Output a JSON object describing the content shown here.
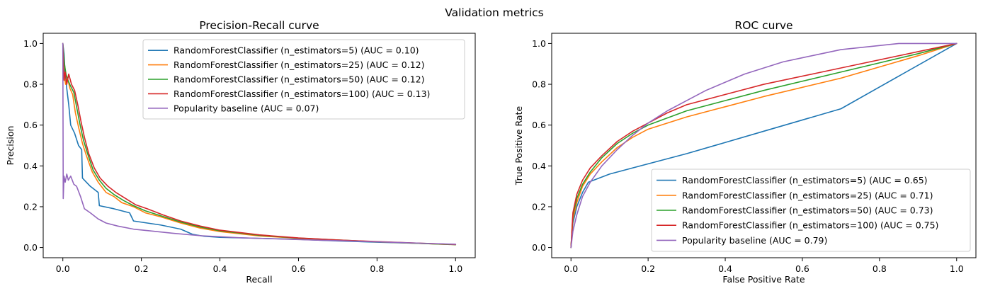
{
  "figure": {
    "suptitle": "Validation metrics"
  },
  "chart_data": [
    {
      "type": "line",
      "title": "Precision-Recall curve",
      "xlabel": "Recall",
      "ylabel": "Precision",
      "xlim": [
        -0.05,
        1.05
      ],
      "ylim": [
        -0.05,
        1.05
      ],
      "xticks": [
        0.0,
        0.2,
        0.4,
        0.6,
        0.8,
        1.0
      ],
      "yticks": [
        0.0,
        0.2,
        0.4,
        0.6,
        0.8,
        1.0
      ],
      "grid": false,
      "legend_position": "upper-right",
      "series": [
        {
          "name": "RandomForestClassifier (n_estimators=5) (AUC = 0.10)",
          "color": "#1f77b4",
          "points": [
            [
              0,
              1.0
            ],
            [
              0.003,
              0.95
            ],
            [
              0.006,
              0.85
            ],
            [
              0.01,
              0.78
            ],
            [
              0.015,
              0.7
            ],
            [
              0.02,
              0.6
            ],
            [
              0.03,
              0.56
            ],
            [
              0.04,
              0.5
            ],
            [
              0.048,
              0.48
            ],
            [
              0.05,
              0.34
            ],
            [
              0.07,
              0.3
            ],
            [
              0.09,
              0.27
            ],
            [
              0.093,
              0.205
            ],
            [
              0.13,
              0.19
            ],
            [
              0.17,
              0.17
            ],
            [
              0.18,
              0.13
            ],
            [
              0.25,
              0.11
            ],
            [
              0.3,
              0.09
            ],
            [
              0.33,
              0.065
            ],
            [
              0.36,
              0.055
            ],
            [
              0.4,
              0.05
            ],
            [
              0.5,
              0.045
            ],
            [
              0.6,
              0.04
            ],
            [
              0.7,
              0.032
            ],
            [
              0.8,
              0.026
            ],
            [
              0.9,
              0.021
            ],
            [
              1.0,
              0.015
            ]
          ]
        },
        {
          "name": "RandomForestClassifier (n_estimators=25) (AUC = 0.12)",
          "color": "#ff7f0e",
          "points": [
            [
              0,
              1.0
            ],
            [
              0.003,
              0.85
            ],
            [
              0.007,
              0.8
            ],
            [
              0.012,
              0.83
            ],
            [
              0.018,
              0.78
            ],
            [
              0.025,
              0.75
            ],
            [
              0.032,
              0.66
            ],
            [
              0.04,
              0.59
            ],
            [
              0.05,
              0.51
            ],
            [
              0.06,
              0.45
            ],
            [
              0.075,
              0.37
            ],
            [
              0.09,
              0.32
            ],
            [
              0.11,
              0.27
            ],
            [
              0.13,
              0.25
            ],
            [
              0.15,
              0.22
            ],
            [
              0.18,
              0.2
            ],
            [
              0.21,
              0.17
            ],
            [
              0.25,
              0.15
            ],
            [
              0.3,
              0.12
            ],
            [
              0.35,
              0.095
            ],
            [
              0.4,
              0.078
            ],
            [
              0.5,
              0.057
            ],
            [
              0.6,
              0.045
            ],
            [
              0.7,
              0.036
            ],
            [
              0.8,
              0.028
            ],
            [
              0.9,
              0.021
            ],
            [
              1.0,
              0.014
            ]
          ]
        },
        {
          "name": "RandomForestClassifier (n_estimators=50) (AUC = 0.12)",
          "color": "#2ca02c",
          "points": [
            [
              0,
              1.0
            ],
            [
              0.004,
              0.9
            ],
            [
              0.008,
              0.85
            ],
            [
              0.013,
              0.82
            ],
            [
              0.02,
              0.79
            ],
            [
              0.028,
              0.76
            ],
            [
              0.035,
              0.69
            ],
            [
              0.043,
              0.61
            ],
            [
              0.052,
              0.53
            ],
            [
              0.063,
              0.46
            ],
            [
              0.077,
              0.38
            ],
            [
              0.093,
              0.33
            ],
            [
              0.11,
              0.29
            ],
            [
              0.13,
              0.26
            ],
            [
              0.155,
              0.23
            ],
            [
              0.18,
              0.205
            ],
            [
              0.21,
              0.18
            ],
            [
              0.25,
              0.155
            ],
            [
              0.3,
              0.125
            ],
            [
              0.35,
              0.1
            ],
            [
              0.4,
              0.082
            ],
            [
              0.5,
              0.06
            ],
            [
              0.6,
              0.046
            ],
            [
              0.7,
              0.037
            ],
            [
              0.8,
              0.028
            ],
            [
              0.9,
              0.021
            ],
            [
              1.0,
              0.014
            ]
          ]
        },
        {
          "name": "RandomForestClassifier (n_estimators=100) (AUC = 0.13)",
          "color": "#d62728",
          "points": [
            [
              0,
              1.0
            ],
            [
              0.003,
              0.82
            ],
            [
              0.006,
              0.86
            ],
            [
              0.01,
              0.8
            ],
            [
              0.015,
              0.85
            ],
            [
              0.022,
              0.8
            ],
            [
              0.03,
              0.77
            ],
            [
              0.038,
              0.7
            ],
            [
              0.046,
              0.62
            ],
            [
              0.055,
              0.54
            ],
            [
              0.066,
              0.46
            ],
            [
              0.08,
              0.39
            ],
            [
              0.095,
              0.34
            ],
            [
              0.115,
              0.3
            ],
            [
              0.135,
              0.27
            ],
            [
              0.16,
              0.24
            ],
            [
              0.185,
              0.21
            ],
            [
              0.215,
              0.19
            ],
            [
              0.255,
              0.16
            ],
            [
              0.3,
              0.13
            ],
            [
              0.35,
              0.105
            ],
            [
              0.4,
              0.085
            ],
            [
              0.5,
              0.062
            ],
            [
              0.6,
              0.047
            ],
            [
              0.7,
              0.037
            ],
            [
              0.8,
              0.029
            ],
            [
              0.9,
              0.022
            ],
            [
              1.0,
              0.015
            ]
          ]
        },
        {
          "name": "Popularity baseline (AUC = 0.07)",
          "color": "#9467bd",
          "points": [
            [
              0,
              1.0
            ],
            [
              0.001,
              0.24
            ],
            [
              0.003,
              0.35
            ],
            [
              0.006,
              0.32
            ],
            [
              0.01,
              0.36
            ],
            [
              0.014,
              0.33
            ],
            [
              0.02,
              0.35
            ],
            [
              0.028,
              0.31
            ],
            [
              0.035,
              0.3
            ],
            [
              0.045,
              0.25
            ],
            [
              0.055,
              0.19
            ],
            [
              0.07,
              0.17
            ],
            [
              0.09,
              0.14
            ],
            [
              0.11,
              0.12
            ],
            [
              0.14,
              0.105
            ],
            [
              0.18,
              0.09
            ],
            [
              0.22,
              0.082
            ],
            [
              0.28,
              0.07
            ],
            [
              0.35,
              0.058
            ],
            [
              0.45,
              0.048
            ],
            [
              0.55,
              0.042
            ],
            [
              0.65,
              0.036
            ],
            [
              0.75,
              0.031
            ],
            [
              0.85,
              0.025
            ],
            [
              0.95,
              0.019
            ],
            [
              1.0,
              0.016
            ]
          ]
        }
      ]
    },
    {
      "type": "line",
      "title": "ROC curve",
      "xlabel": "False Positive Rate",
      "ylabel": "True Positive Rate",
      "xlim": [
        -0.05,
        1.05
      ],
      "ylim": [
        -0.05,
        1.05
      ],
      "xticks": [
        0.0,
        0.2,
        0.4,
        0.6,
        0.8,
        1.0
      ],
      "yticks": [
        0.0,
        0.2,
        0.4,
        0.6,
        0.8,
        1.0
      ],
      "grid": false,
      "legend_position": "lower-right",
      "series": [
        {
          "name": "RandomForestClassifier (n_estimators=5) (AUC = 0.65)",
          "color": "#1f77b4",
          "points": [
            [
              0,
              0
            ],
            [
              0.005,
              0.12
            ],
            [
              0.015,
              0.2
            ],
            [
              0.03,
              0.27
            ],
            [
              0.045,
              0.32
            ],
            [
              0.1,
              0.36
            ],
            [
              0.3,
              0.46
            ],
            [
              0.5,
              0.57
            ],
            [
              0.7,
              0.68
            ],
            [
              1.0,
              1.0
            ]
          ]
        },
        {
          "name": "RandomForestClassifier (n_estimators=25) (AUC = 0.71)",
          "color": "#ff7f0e",
          "points": [
            [
              0,
              0
            ],
            [
              0.005,
              0.14
            ],
            [
              0.015,
              0.22
            ],
            [
              0.03,
              0.3
            ],
            [
              0.05,
              0.36
            ],
            [
              0.08,
              0.42
            ],
            [
              0.12,
              0.49
            ],
            [
              0.16,
              0.54
            ],
            [
              0.2,
              0.58
            ],
            [
              0.3,
              0.64
            ],
            [
              0.5,
              0.74
            ],
            [
              0.7,
              0.83
            ],
            [
              0.9,
              0.94
            ],
            [
              1.0,
              1.0
            ]
          ]
        },
        {
          "name": "RandomForestClassifier (n_estimators=50) (AUC = 0.73)",
          "color": "#2ca02c",
          "points": [
            [
              0,
              0
            ],
            [
              0.005,
              0.16
            ],
            [
              0.015,
              0.24
            ],
            [
              0.03,
              0.31
            ],
            [
              0.05,
              0.37
            ],
            [
              0.08,
              0.44
            ],
            [
              0.12,
              0.51
            ],
            [
              0.16,
              0.56
            ],
            [
              0.2,
              0.6
            ],
            [
              0.3,
              0.67
            ],
            [
              0.5,
              0.77
            ],
            [
              0.7,
              0.86
            ],
            [
              0.9,
              0.95
            ],
            [
              1.0,
              1.0
            ]
          ]
        },
        {
          "name": "RandomForestClassifier (n_estimators=100) (AUC = 0.75)",
          "color": "#d62728",
          "points": [
            [
              0,
              0
            ],
            [
              0.005,
              0.17
            ],
            [
              0.015,
              0.26
            ],
            [
              0.03,
              0.33
            ],
            [
              0.05,
              0.39
            ],
            [
              0.08,
              0.45
            ],
            [
              0.12,
              0.52
            ],
            [
              0.16,
              0.57
            ],
            [
              0.2,
              0.61
            ],
            [
              0.25,
              0.66
            ],
            [
              0.3,
              0.7
            ],
            [
              0.5,
              0.8
            ],
            [
              0.7,
              0.88
            ],
            [
              0.9,
              0.96
            ],
            [
              1.0,
              1.0
            ]
          ]
        },
        {
          "name": "Popularity baseline (AUC = 0.79)",
          "color": "#9467bd",
          "points": [
            [
              0,
              0
            ],
            [
              0.005,
              0.08
            ],
            [
              0.015,
              0.16
            ],
            [
              0.03,
              0.25
            ],
            [
              0.05,
              0.32
            ],
            [
              0.08,
              0.4
            ],
            [
              0.12,
              0.48
            ],
            [
              0.16,
              0.55
            ],
            [
              0.2,
              0.61
            ],
            [
              0.25,
              0.67
            ],
            [
              0.3,
              0.72
            ],
            [
              0.35,
              0.77
            ],
            [
              0.4,
              0.81
            ],
            [
              0.45,
              0.85
            ],
            [
              0.5,
              0.88
            ],
            [
              0.55,
              0.91
            ],
            [
              0.6,
              0.93
            ],
            [
              0.65,
              0.95
            ],
            [
              0.7,
              0.97
            ],
            [
              0.75,
              0.98
            ],
            [
              0.8,
              0.99
            ],
            [
              0.85,
              1.0
            ],
            [
              1.0,
              1.0
            ]
          ]
        }
      ]
    }
  ]
}
